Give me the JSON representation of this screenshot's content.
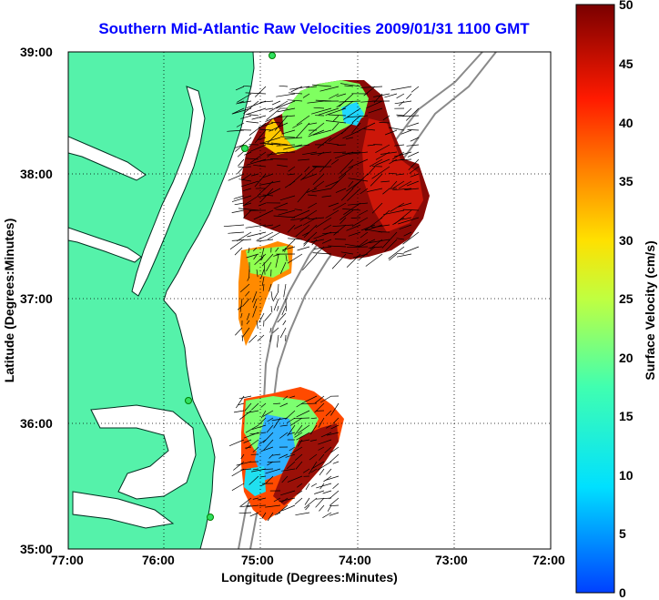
{
  "title": "Southern Mid-Atlantic Raw Velocities 2009/01/31 1100 GMT",
  "map": {
    "xlabel": "Longitude (Degrees:Minutes)",
    "ylabel": "Latitude (Degrees:Minutes)",
    "x_ticks": [
      "77:00",
      "76:00",
      "75:00",
      "74:00",
      "73:00",
      "72:00"
    ],
    "y_ticks": [
      "39:00",
      "38:00",
      "37:00",
      "36:00",
      "35:00"
    ],
    "lon_range": [
      -77,
      -72
    ],
    "lat_range": [
      35,
      39
    ],
    "grid": "dotted",
    "land_color": "#55f2aa",
    "vector_color": "#000000"
  },
  "colorbar": {
    "label": "Surface Velocity (cm/s)",
    "ticks": [
      "0",
      "5",
      "10",
      "15",
      "20",
      "25",
      "30",
      "35",
      "40",
      "45",
      "50"
    ],
    "range": [
      0,
      50
    ],
    "colormap": "jet"
  }
}
